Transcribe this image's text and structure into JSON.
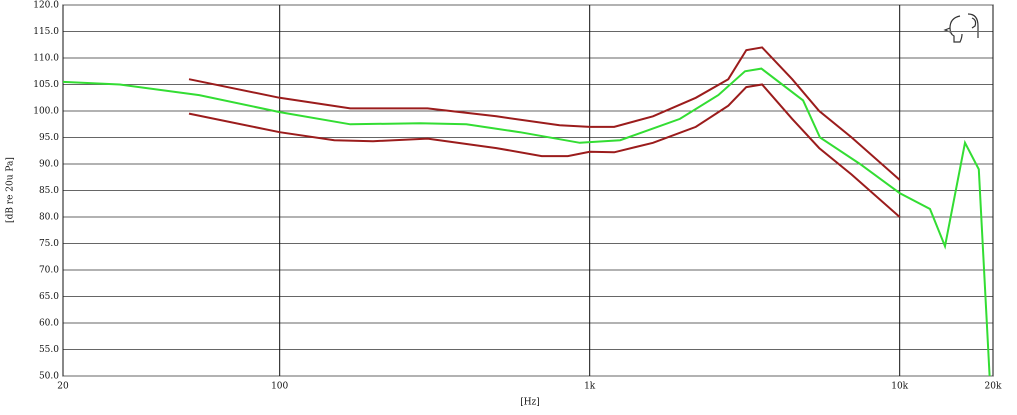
{
  "chart_data": {
    "type": "line",
    "xscale": "log",
    "grid": true,
    "xlabel": "[Hz]",
    "ylabel": "[dB re 20u Pa]",
    "xlim": [
      20,
      20000
    ],
    "ylim": [
      50,
      120
    ],
    "xticks": [
      20,
      100,
      {
        "value": 1000,
        "label": "1k"
      },
      {
        "value": 10000,
        "label": "10k"
      },
      {
        "value": 20000,
        "label": "20k"
      }
    ],
    "yticks": [
      {
        "value": 50,
        "label": "50.0"
      },
      {
        "value": 55,
        "label": "55.0"
      },
      {
        "value": 60,
        "label": "60.0"
      },
      {
        "value": 65,
        "label": "65.0"
      },
      {
        "value": 70,
        "label": "70.0"
      },
      {
        "value": 75,
        "label": "75.0"
      },
      {
        "value": 80,
        "label": "80.0"
      },
      {
        "value": 85,
        "label": "85.0"
      },
      {
        "value": 90,
        "label": "90.0"
      },
      {
        "value": 95,
        "label": "95.0"
      },
      {
        "value": 100,
        "label": "100.0"
      },
      {
        "value": 105,
        "label": "105.0"
      },
      {
        "value": 110,
        "label": "110.0"
      },
      {
        "value": 115,
        "label": "115.0"
      },
      {
        "value": 120,
        "label": "120.0"
      }
    ],
    "series": [
      {
        "color": "#9b1c1c",
        "x": [
          51,
          100,
          169,
          300,
          500,
          800,
          1000,
          1200,
          1600,
          2200,
          2800,
          3200,
          3600,
          4500,
          5500,
          7000,
          10000
        ],
        "values": [
          106,
          102.5,
          100.5,
          100.5,
          99,
          97.3,
          97,
          97,
          99,
          102.5,
          106,
          111.5,
          112,
          106,
          100,
          95,
          87
        ]
      },
      {
        "color": "#9b1c1c",
        "x": [
          51,
          100,
          150,
          200,
          300,
          500,
          700,
          850,
          1000,
          1200,
          1600,
          2200,
          2800,
          3200,
          3600,
          4500,
          5500,
          7000,
          10000
        ],
        "values": [
          99.5,
          96,
          94.5,
          94.3,
          94.8,
          93,
          91.5,
          91.5,
          92.3,
          92.2,
          94,
          97,
          101,
          104.5,
          105,
          98.5,
          93,
          88,
          80
        ]
      },
      {
        "color": "#33dd33",
        "x": [
          20,
          30.5,
          55,
          100,
          169,
          284,
          400,
          596,
          929,
          1254,
          1955,
          2600,
          3170,
          3580,
          4880,
          5534,
          7450,
          10000,
          12530,
          14000,
          16250,
          18000,
          19500
        ],
        "values": [
          105.5,
          105,
          103,
          99.8,
          97.5,
          97.7,
          97.5,
          96,
          94,
          94.5,
          98.5,
          103,
          107.5,
          108,
          102,
          95,
          90,
          84.5,
          81.5,
          74.5,
          94,
          89,
          50
        ]
      }
    ]
  }
}
